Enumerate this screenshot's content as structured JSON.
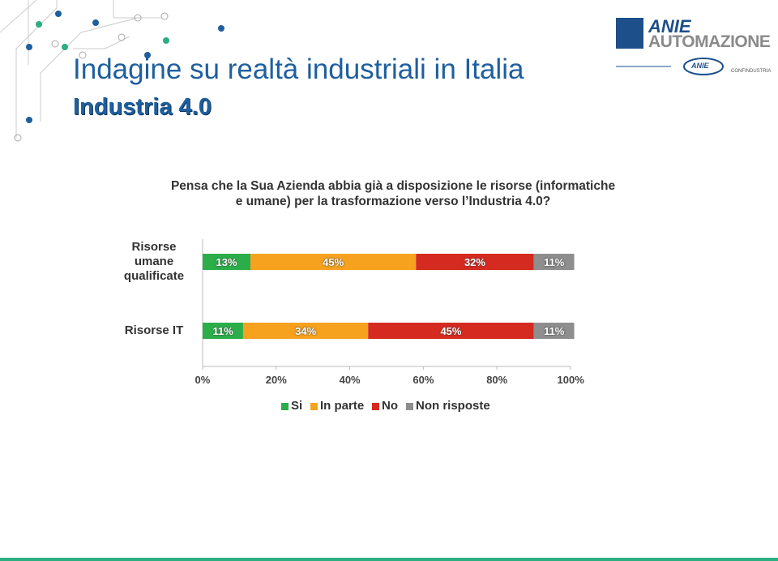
{
  "header": {
    "title": "Indagine su realtà industriali in Italia",
    "subtitle": "Industria 4.0"
  },
  "logo": {
    "brand": "ANIE",
    "name": "AUTOMAZIONE",
    "badge": "ANIE",
    "affiliation": "CONFINDUSTRIA"
  },
  "chart_data": {
    "type": "stacked-bar-horizontal",
    "title": "Pensa che la Sua Azienda abbia già a disposizione le risorse (informatiche e umane) per la trasformazione verso l’Industria 4.0?",
    "categories": [
      "Risorse umane qualificate",
      "Risorse IT"
    ],
    "series": [
      {
        "name": "Si",
        "color": "#2bae4a",
        "values": [
          13,
          11
        ],
        "value_labels": [
          "13%",
          "11%"
        ]
      },
      {
        "name": "In parte",
        "color": "#f6a21e",
        "values": [
          45,
          34
        ],
        "value_labels": [
          "45%",
          "34%"
        ]
      },
      {
        "name": "No",
        "color": "#d42a20",
        "values": [
          32,
          45
        ],
        "value_labels": [
          "32%",
          "45%"
        ]
      },
      {
        "name": "Non risposte",
        "color": "#8e8e8e",
        "values": [
          11,
          11
        ],
        "value_labels": [
          "11%",
          "11%"
        ]
      }
    ],
    "xlim": [
      0,
      100
    ],
    "xticks": [
      {
        "value": 0,
        "label": "0%"
      },
      {
        "value": 20,
        "label": "20%"
      },
      {
        "value": 40,
        "label": "40%"
      },
      {
        "value": 60,
        "label": "60%"
      },
      {
        "value": 80,
        "label": "80%"
      },
      {
        "value": 100,
        "label": "100%"
      }
    ],
    "grid": false,
    "legend": "bottom"
  }
}
